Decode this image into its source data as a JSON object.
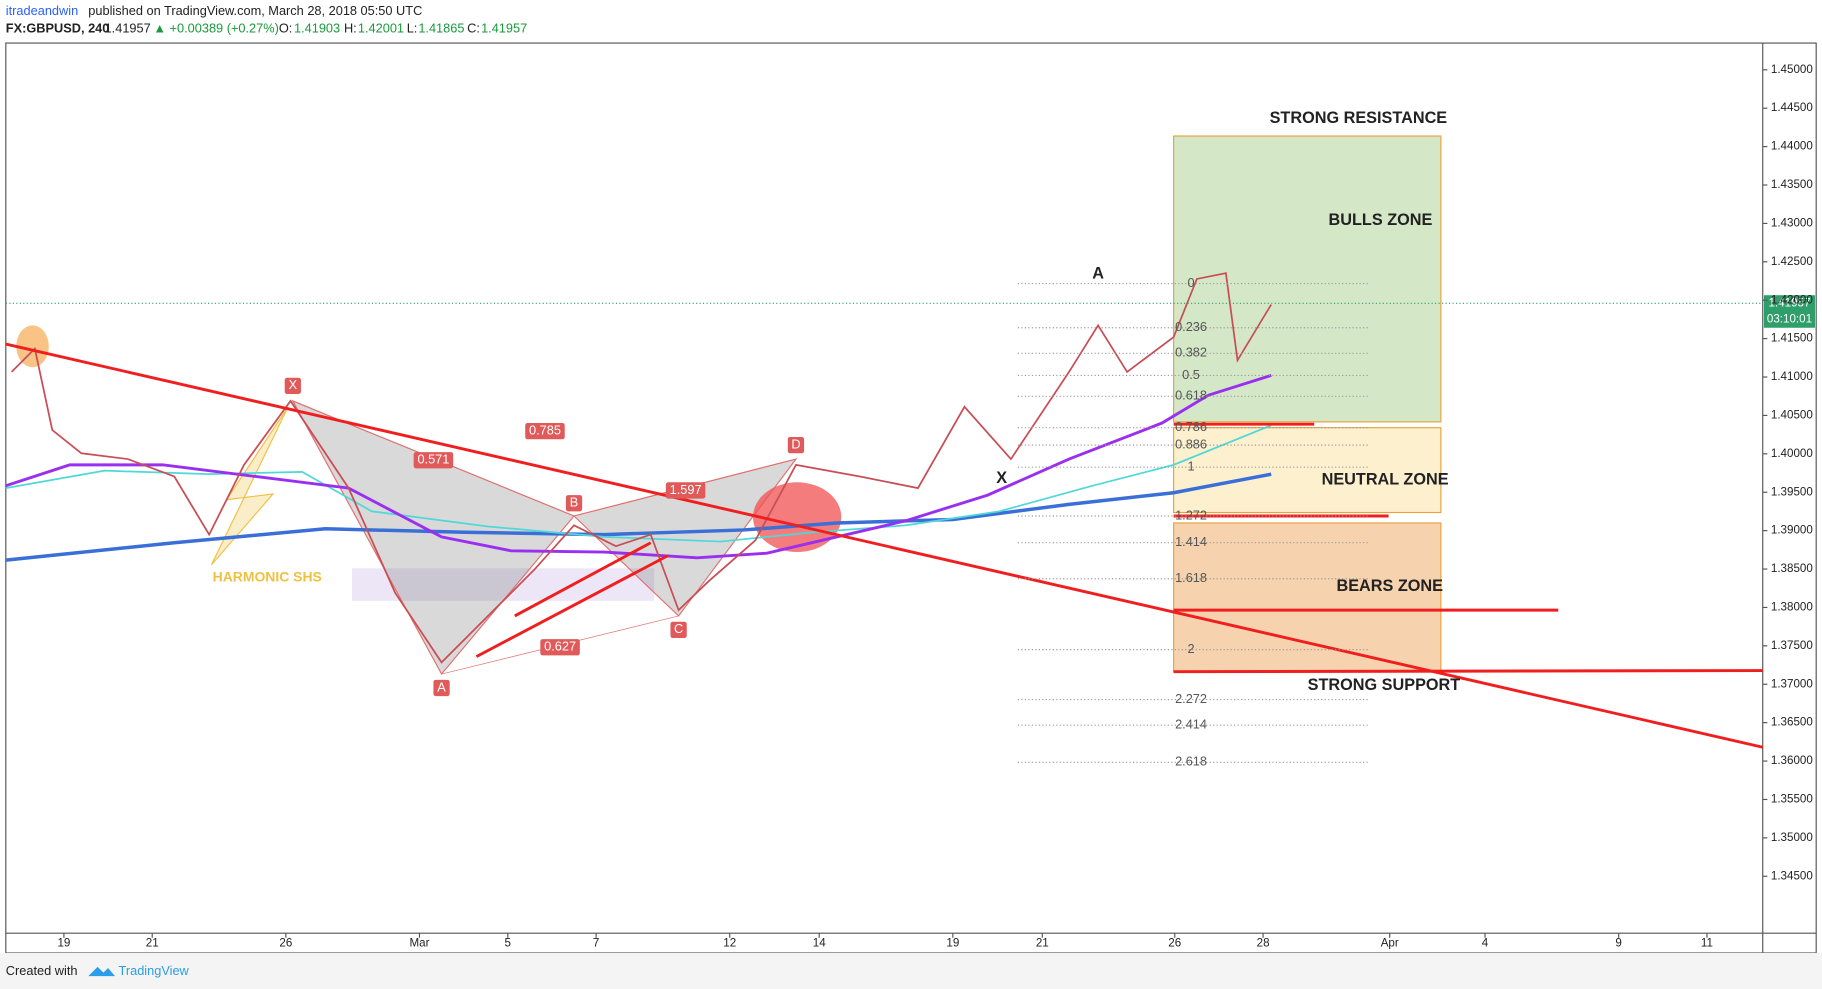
{
  "header": {
    "author": "itradeandwin",
    "published": "published on TradingView.com, March 28, 2018 05:50 UTC",
    "symbol": "FX:GBPUSD, 240",
    "last": "1.41957",
    "change": "▲ +0.00389 (+0.27%)",
    "o_label": "O:",
    "o": "1.41903",
    "h_label": "H:",
    "h": "1.42001",
    "l_label": "L:",
    "l": "1.41865",
    "c_label": "C:",
    "c": "1.41957"
  },
  "price_axis": [
    "1.45000",
    "1.44500",
    "1.44000",
    "1.43500",
    "1.43000",
    "1.42500",
    "1.42000",
    "1.41500",
    "1.41000",
    "1.40500",
    "1.40000",
    "1.39500",
    "1.39000",
    "1.38500",
    "1.38000",
    "1.37500",
    "1.37000",
    "1.36500",
    "1.36000",
    "1.35500",
    "1.35000",
    "1.34500"
  ],
  "price_tag": "1.41957",
  "countdown": "03:10:01",
  "time_axis": [
    "19",
    "21",
    "26",
    "Mar",
    "5",
    "7",
    "12",
    "14",
    "19",
    "21",
    "26",
    "28",
    "Apr",
    "4",
    "9",
    "11"
  ],
  "annotations": {
    "resistance": "STRONG RESISTANCE",
    "bulls": "BULLS ZONE",
    "neutral": "NEUTRAL ZONE",
    "bears": "BEARS ZONE",
    "support": "STRONG SUPPORT",
    "harmonic": "HARMONIC SHS",
    "fib_x": "X",
    "fib_a": "A"
  },
  "pattern": {
    "x": "X",
    "a": "A",
    "b": "B",
    "c": "C",
    "d": "D",
    "xb": "0.785",
    "ab": "0.571",
    "bd": "1.597",
    "ac": "0.627"
  },
  "fib_levels": [
    "0",
    "0.236",
    "0.382",
    "0.5",
    "0.618",
    "0.786",
    "0.886",
    "1",
    "1.272",
    "1.414",
    "1.618",
    "2",
    "2.272",
    "2.414",
    "2.618"
  ],
  "footer": {
    "created": "Created with",
    "brand": "TradingView"
  }
}
